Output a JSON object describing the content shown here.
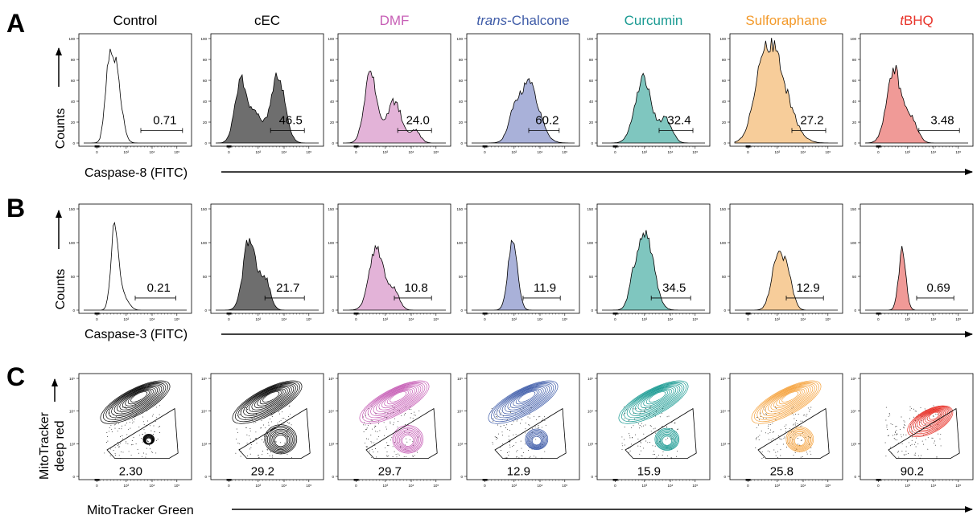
{
  "panels": {
    "A": {
      "letter": "A",
      "y_label": "Counts",
      "x_label": "Caspase-8 (FITC)"
    },
    "B": {
      "letter": "B",
      "y_label": "Counts",
      "x_label": "Caspase-3 (FITC)"
    },
    "C": {
      "letter": "C",
      "y_label_line1": "MitoTracker",
      "y_label_line2": "deep red",
      "x_label": "MitoTracker Green"
    }
  },
  "colors": {
    "Control": "#ffffff",
    "cEC": "#6e6e6e",
    "DMF": "#e3b3d8",
    "trans-Chalcone": "#a9b1d9",
    "Curcumin": "#7fc6bf",
    "Sulforaphane": "#f7cd9a",
    "tBHQ": "#f09a97",
    "title_DMF": "#c75fb6",
    "title_trans-Chalcone": "#3f5ca8",
    "title_Curcumin": "#1a9a92",
    "title_Sulforaphane": "#f39a2b",
    "title_tBHQ": "#e8342b",
    "contour_Control": "#000000",
    "contour_cEC": "#000000",
    "contour_DMF": "#c55ab4",
    "contour_trans-Chalcone": "#3c5aa8",
    "contour_Curcumin": "#12978f",
    "contour_Sulforaphane": "#f5a13a",
    "contour_tBHQ": "#e8352c"
  },
  "titles": [
    {
      "key": "Control",
      "prefix": "",
      "text": "Control"
    },
    {
      "key": "cEC",
      "prefix": "",
      "text": "cEC"
    },
    {
      "key": "DMF",
      "prefix": "",
      "text": "DMF"
    },
    {
      "key": "trans-Chalcone",
      "prefix": "trans",
      "text": "-Chalcone"
    },
    {
      "key": "Curcumin",
      "prefix": "",
      "text": "Curcumin"
    },
    {
      "key": "Sulforaphane",
      "prefix": "",
      "text": "Sulforaphane"
    },
    {
      "key": "tBHQ",
      "prefix": "t",
      "text": "BHQ"
    }
  ],
  "axis_ticks": {
    "histogram_y_A": [
      "100",
      "80",
      "60",
      "40",
      "20",
      "0"
    ],
    "histogram_y_B": [
      "150",
      "100",
      "50",
      "0"
    ],
    "fitc_x": [
      "0",
      "10³",
      "10⁴",
      "10⁵"
    ],
    "contour_y": [
      "10⁵",
      "10⁴",
      "10³",
      "0"
    ],
    "contour_x": [
      "0",
      "10³",
      "10⁴",
      "10⁵"
    ]
  },
  "chart_data": [
    {
      "type": "histogram",
      "panel": "A",
      "title": "",
      "xlabel": "Caspase-8 (FITC)",
      "ylabel": "Counts",
      "x_scale": "biexponential",
      "gate_label": "percent positive",
      "samples": [
        "Control",
        "cEC",
        "DMF",
        "trans-Chalcone",
        "Curcumin",
        "Sulforaphane",
        "tBHQ"
      ],
      "gate_values": [
        0.71,
        46.5,
        24.0,
        60.2,
        32.4,
        27.2,
        3.48
      ],
      "gate_labels": [
        "0.71",
        "46.5",
        "24.0",
        "60.2",
        "32.4",
        "27.2",
        "3.48"
      ]
    },
    {
      "type": "histogram",
      "panel": "B",
      "title": "",
      "xlabel": "Caspase-3 (FITC)",
      "ylabel": "Counts",
      "x_scale": "biexponential",
      "samples": [
        "Control",
        "cEC",
        "DMF",
        "trans-Chalcone",
        "Curcumin",
        "Sulforaphane",
        "tBHQ"
      ],
      "gate_values": [
        0.21,
        21.7,
        10.8,
        11.9,
        34.5,
        12.9,
        0.69
      ],
      "gate_labels": [
        "0.21",
        "21.7",
        "10.8",
        "11.9",
        "34.5",
        "12.9",
        "0.69"
      ]
    },
    {
      "type": "contour",
      "panel": "C",
      "title": "",
      "xlabel": "MitoTracker Green",
      "ylabel": "MitoTracker deep red",
      "samples": [
        "Control",
        "cEC",
        "DMF",
        "trans-Chalcone",
        "Curcumin",
        "Sulforaphane",
        "tBHQ"
      ],
      "gate_values": [
        2.3,
        29.2,
        29.7,
        12.9,
        15.9,
        25.8,
        90.2
      ],
      "gate_labels": [
        "2.30",
        "29.2",
        "29.7",
        "12.9",
        "15.9",
        "25.8",
        "90.2"
      ]
    }
  ]
}
